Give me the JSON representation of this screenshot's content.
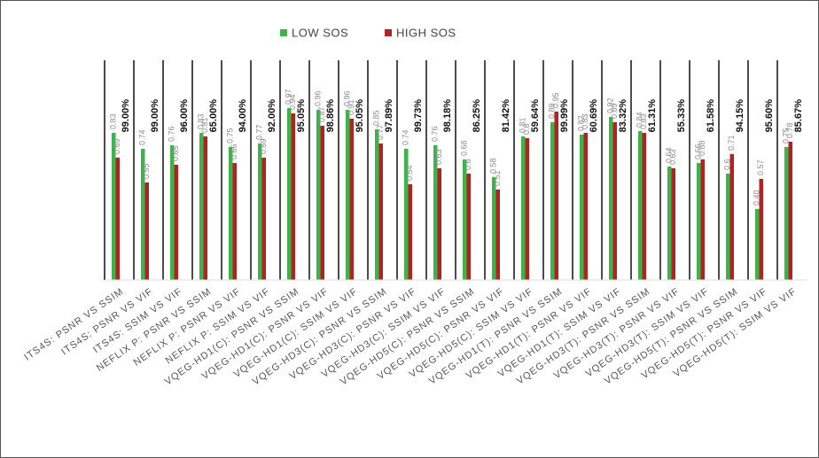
{
  "chart_data": {
    "type": "bar",
    "categories": [
      "ITS4S: PSNR VS SSIM",
      "ITS4S: PSNR VS VIF",
      "ITS4S: SSIM VS VIF",
      "NEFLIX P: PSNR VS SSIM",
      "NEFLIX P: PSNR VS VIF",
      "NEFLIX P:  SSIM VS VIF",
      "VQEG-HD1(C): PSNR VS SSIM",
      "VQEG-HD1(C): PSNR VS VIF",
      "VQEG-HD1(C):  SSIM VS VIF",
      "VQEG-HD3(C): PSNR VS SSIM",
      "VQEG-HD3(C): PSNR VS VIF",
      "VQEG-HD3(C): SSIM VS VIF",
      "VQEG-HD5(C): PSNR VS SSIM",
      "VQEG-HD5(C): PSNR VS VIF",
      "VQEG-HD5(C): SSIM VS VIF",
      "VQEG-HD1(T): PSNR VS SSIM",
      "VQEG-HD1(T): PSNR VS VIF",
      "VQEG-HD1(T): SSIM VS VIF",
      "VQEG-HD3(T): PSNR VS SSIM",
      "VQEG-HD3(T): PSNR VS VIF",
      "VQEG-HD3(T): SSIM VS VIF",
      "VQEG-HD5(T): PSNR VS SSIM",
      "VQEG-HD5(T): PSNR VS VIF",
      "VQEG-HD5(T): SSIM VS VIF"
    ],
    "series": [
      {
        "name": "LOW SOS",
        "color": "#3cb44b",
        "values": [
          0.83,
          0.74,
          0.76,
          0.83,
          0.75,
          0.77,
          0.97,
          0.96,
          0.96,
          0.85,
          0.74,
          0.76,
          0.68,
          0.58,
          0.81,
          0.89,
          0.82,
          0.92,
          0.84,
          0.64,
          0.66,
          0.6,
          0.4,
          0.75
        ],
        "value_labels": [
          "0.83",
          "0.74",
          "0.76",
          "0.83",
          "0.75",
          "0.77",
          "0.97",
          "0.96",
          "0.96",
          "0.85",
          "0.74",
          "0.76",
          "0.68",
          "0.58",
          "0.81",
          "0.89",
          "0.82",
          "0.92",
          "0.84",
          "0.64",
          "0.66",
          "0.6",
          "0.40",
          "0.75"
        ]
      },
      {
        "name": "HIGH SOS",
        "color": "#b22222",
        "values": [
          0.69,
          0.55,
          0.65,
          0.81,
          0.66,
          0.69,
          0.94,
          0.87,
          0.91,
          0.77,
          0.54,
          0.63,
          0.6,
          0.51,
          0.8,
          0.95,
          0.83,
          0.89,
          0.83,
          0.63,
          0.68,
          0.71,
          0.57,
          0.78
        ]
      }
    ],
    "annotations": [
      "99.00%",
      "99.00%",
      "96.00%",
      "65.00%",
      "94.00%",
      "92.00%",
      "95.05%",
      "98.86%",
      "95.05%",
      "97.89%",
      "99.73%",
      "98.18%",
      "86.25%",
      "81.42%",
      "59.64%",
      "99.99%",
      "60.69%",
      "83.32%",
      "61.31%",
      "55.33%",
      "61.58%",
      "94.15%",
      "95.60%",
      "85.67%"
    ],
    "ylim": [
      0,
      1
    ]
  }
}
